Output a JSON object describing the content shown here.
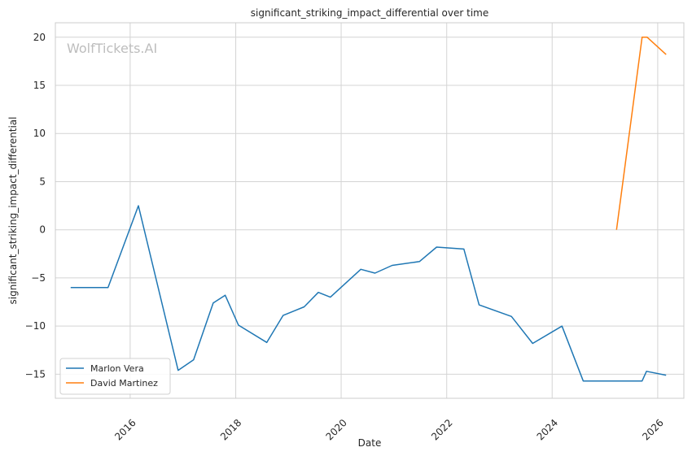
{
  "chart_data": {
    "type": "line",
    "title": "significant_striking_impact_differential over time",
    "xlabel": "Date",
    "ylabel": "significant_striking_impact_differential",
    "watermark": "WolfTickets.AI",
    "xlim": [
      "2014-08-01",
      "2026-07-01"
    ],
    "ylim": [
      -17.5,
      21.5
    ],
    "x_ticks": [
      "2016",
      "2018",
      "2020",
      "2022",
      "2024",
      "2026"
    ],
    "y_ticks": [
      -15,
      -10,
      -5,
      0,
      5,
      10,
      15,
      20
    ],
    "grid": true,
    "legend_position": "lower-left",
    "series": [
      {
        "name": "Marlon Vera",
        "color": "#1f77b4",
        "points": [
          {
            "x": "2014-11-15",
            "y": -6.0
          },
          {
            "x": "2015-08-01",
            "y": -6.0
          },
          {
            "x": "2016-02-27",
            "y": 2.5
          },
          {
            "x": "2016-11-28",
            "y": -14.6
          },
          {
            "x": "2017-03-15",
            "y": -13.5
          },
          {
            "x": "2017-07-29",
            "y": -7.6
          },
          {
            "x": "2017-10-20",
            "y": -6.8
          },
          {
            "x": "2018-01-20",
            "y": -9.9
          },
          {
            "x": "2018-08-04",
            "y": -11.7
          },
          {
            "x": "2018-11-25",
            "y": -8.9
          },
          {
            "x": "2019-04-20",
            "y": -8.0
          },
          {
            "x": "2019-07-27",
            "y": -6.5
          },
          {
            "x": "2019-10-18",
            "y": -7.0
          },
          {
            "x": "2020-05-16",
            "y": -4.1
          },
          {
            "x": "2020-08-22",
            "y": -4.5
          },
          {
            "x": "2020-12-19",
            "y": -3.7
          },
          {
            "x": "2021-06-26",
            "y": -3.3
          },
          {
            "x": "2021-10-23",
            "y": -1.8
          },
          {
            "x": "2022-04-30",
            "y": -2.0
          },
          {
            "x": "2022-08-13",
            "y": -7.8
          },
          {
            "x": "2023-03-25",
            "y": -9.0
          },
          {
            "x": "2023-08-19",
            "y": -11.8
          },
          {
            "x": "2024-03-09",
            "y": -10.0
          },
          {
            "x": "2024-08-03",
            "y": -15.7
          },
          {
            "x": "2025-09-15",
            "y": -15.7
          },
          {
            "x": "2025-10-15",
            "y": -14.7
          },
          {
            "x": "2026-02-28",
            "y": -15.1
          }
        ]
      },
      {
        "name": "David Martinez",
        "color": "#ff7f0e",
        "points": [
          {
            "x": "2025-03-22",
            "y": 0.0
          },
          {
            "x": "2025-09-15",
            "y": 20.0
          },
          {
            "x": "2025-10-20",
            "y": 20.0
          },
          {
            "x": "2026-02-28",
            "y": 18.2
          }
        ]
      }
    ]
  }
}
